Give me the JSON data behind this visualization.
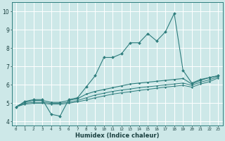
{
  "title": "",
  "xlabel": "Humidex (Indice chaleur)",
  "background_color": "#cde8e8",
  "grid_color": "#ffffff",
  "line_color": "#2e7d7d",
  "xlim": [
    -0.5,
    23.5
  ],
  "ylim": [
    3.8,
    10.5
  ],
  "xticks": [
    0,
    1,
    2,
    3,
    4,
    5,
    6,
    7,
    8,
    9,
    10,
    11,
    12,
    13,
    14,
    15,
    16,
    17,
    18,
    19,
    20,
    21,
    22,
    23
  ],
  "yticks": [
    4,
    5,
    6,
    7,
    8,
    9,
    10
  ],
  "series": {
    "line1": {
      "x": [
        0,
        1,
        2,
        3,
        4,
        5,
        6,
        7,
        8,
        9,
        10,
        11,
        12,
        13,
        14,
        15,
        16,
        17,
        18,
        19,
        20,
        21,
        22,
        23
      ],
      "y": [
        4.8,
        5.1,
        5.2,
        5.2,
        4.4,
        4.3,
        5.2,
        5.3,
        5.9,
        6.5,
        7.5,
        7.5,
        7.7,
        8.3,
        8.3,
        8.8,
        8.4,
        8.9,
        9.9,
        6.8,
        6.1,
        6.3,
        6.4,
        6.5
      ]
    },
    "line2": {
      "x": [
        0,
        1,
        2,
        3,
        4,
        5,
        6,
        7,
        8,
        9,
        10,
        11,
        12,
        13,
        14,
        15,
        16,
        17,
        18,
        19,
        20,
        21,
        22,
        23
      ],
      "y": [
        4.8,
        5.05,
        5.15,
        5.15,
        5.05,
        5.05,
        5.15,
        5.25,
        5.5,
        5.65,
        5.75,
        5.85,
        5.95,
        6.05,
        6.1,
        6.15,
        6.2,
        6.25,
        6.3,
        6.35,
        6.05,
        6.25,
        6.4,
        6.5
      ]
    },
    "line3": {
      "x": [
        0,
        1,
        2,
        3,
        4,
        5,
        6,
        7,
        8,
        9,
        10,
        11,
        12,
        13,
        14,
        15,
        16,
        17,
        18,
        19,
        20,
        21,
        22,
        23
      ],
      "y": [
        4.8,
        5.0,
        5.05,
        5.05,
        5.0,
        5.0,
        5.05,
        5.15,
        5.3,
        5.45,
        5.55,
        5.65,
        5.72,
        5.78,
        5.85,
        5.9,
        5.95,
        6.0,
        6.05,
        6.1,
        5.98,
        6.15,
        6.28,
        6.45
      ]
    },
    "line4": {
      "x": [
        0,
        1,
        2,
        3,
        4,
        5,
        6,
        7,
        8,
        9,
        10,
        11,
        12,
        13,
        14,
        15,
        16,
        17,
        18,
        19,
        20,
        21,
        22,
        23
      ],
      "y": [
        4.8,
        4.95,
        5.0,
        5.0,
        4.95,
        4.95,
        5.0,
        5.08,
        5.18,
        5.3,
        5.4,
        5.5,
        5.57,
        5.63,
        5.7,
        5.76,
        5.82,
        5.88,
        5.93,
        5.98,
        5.88,
        6.05,
        6.18,
        6.38
      ]
    }
  }
}
